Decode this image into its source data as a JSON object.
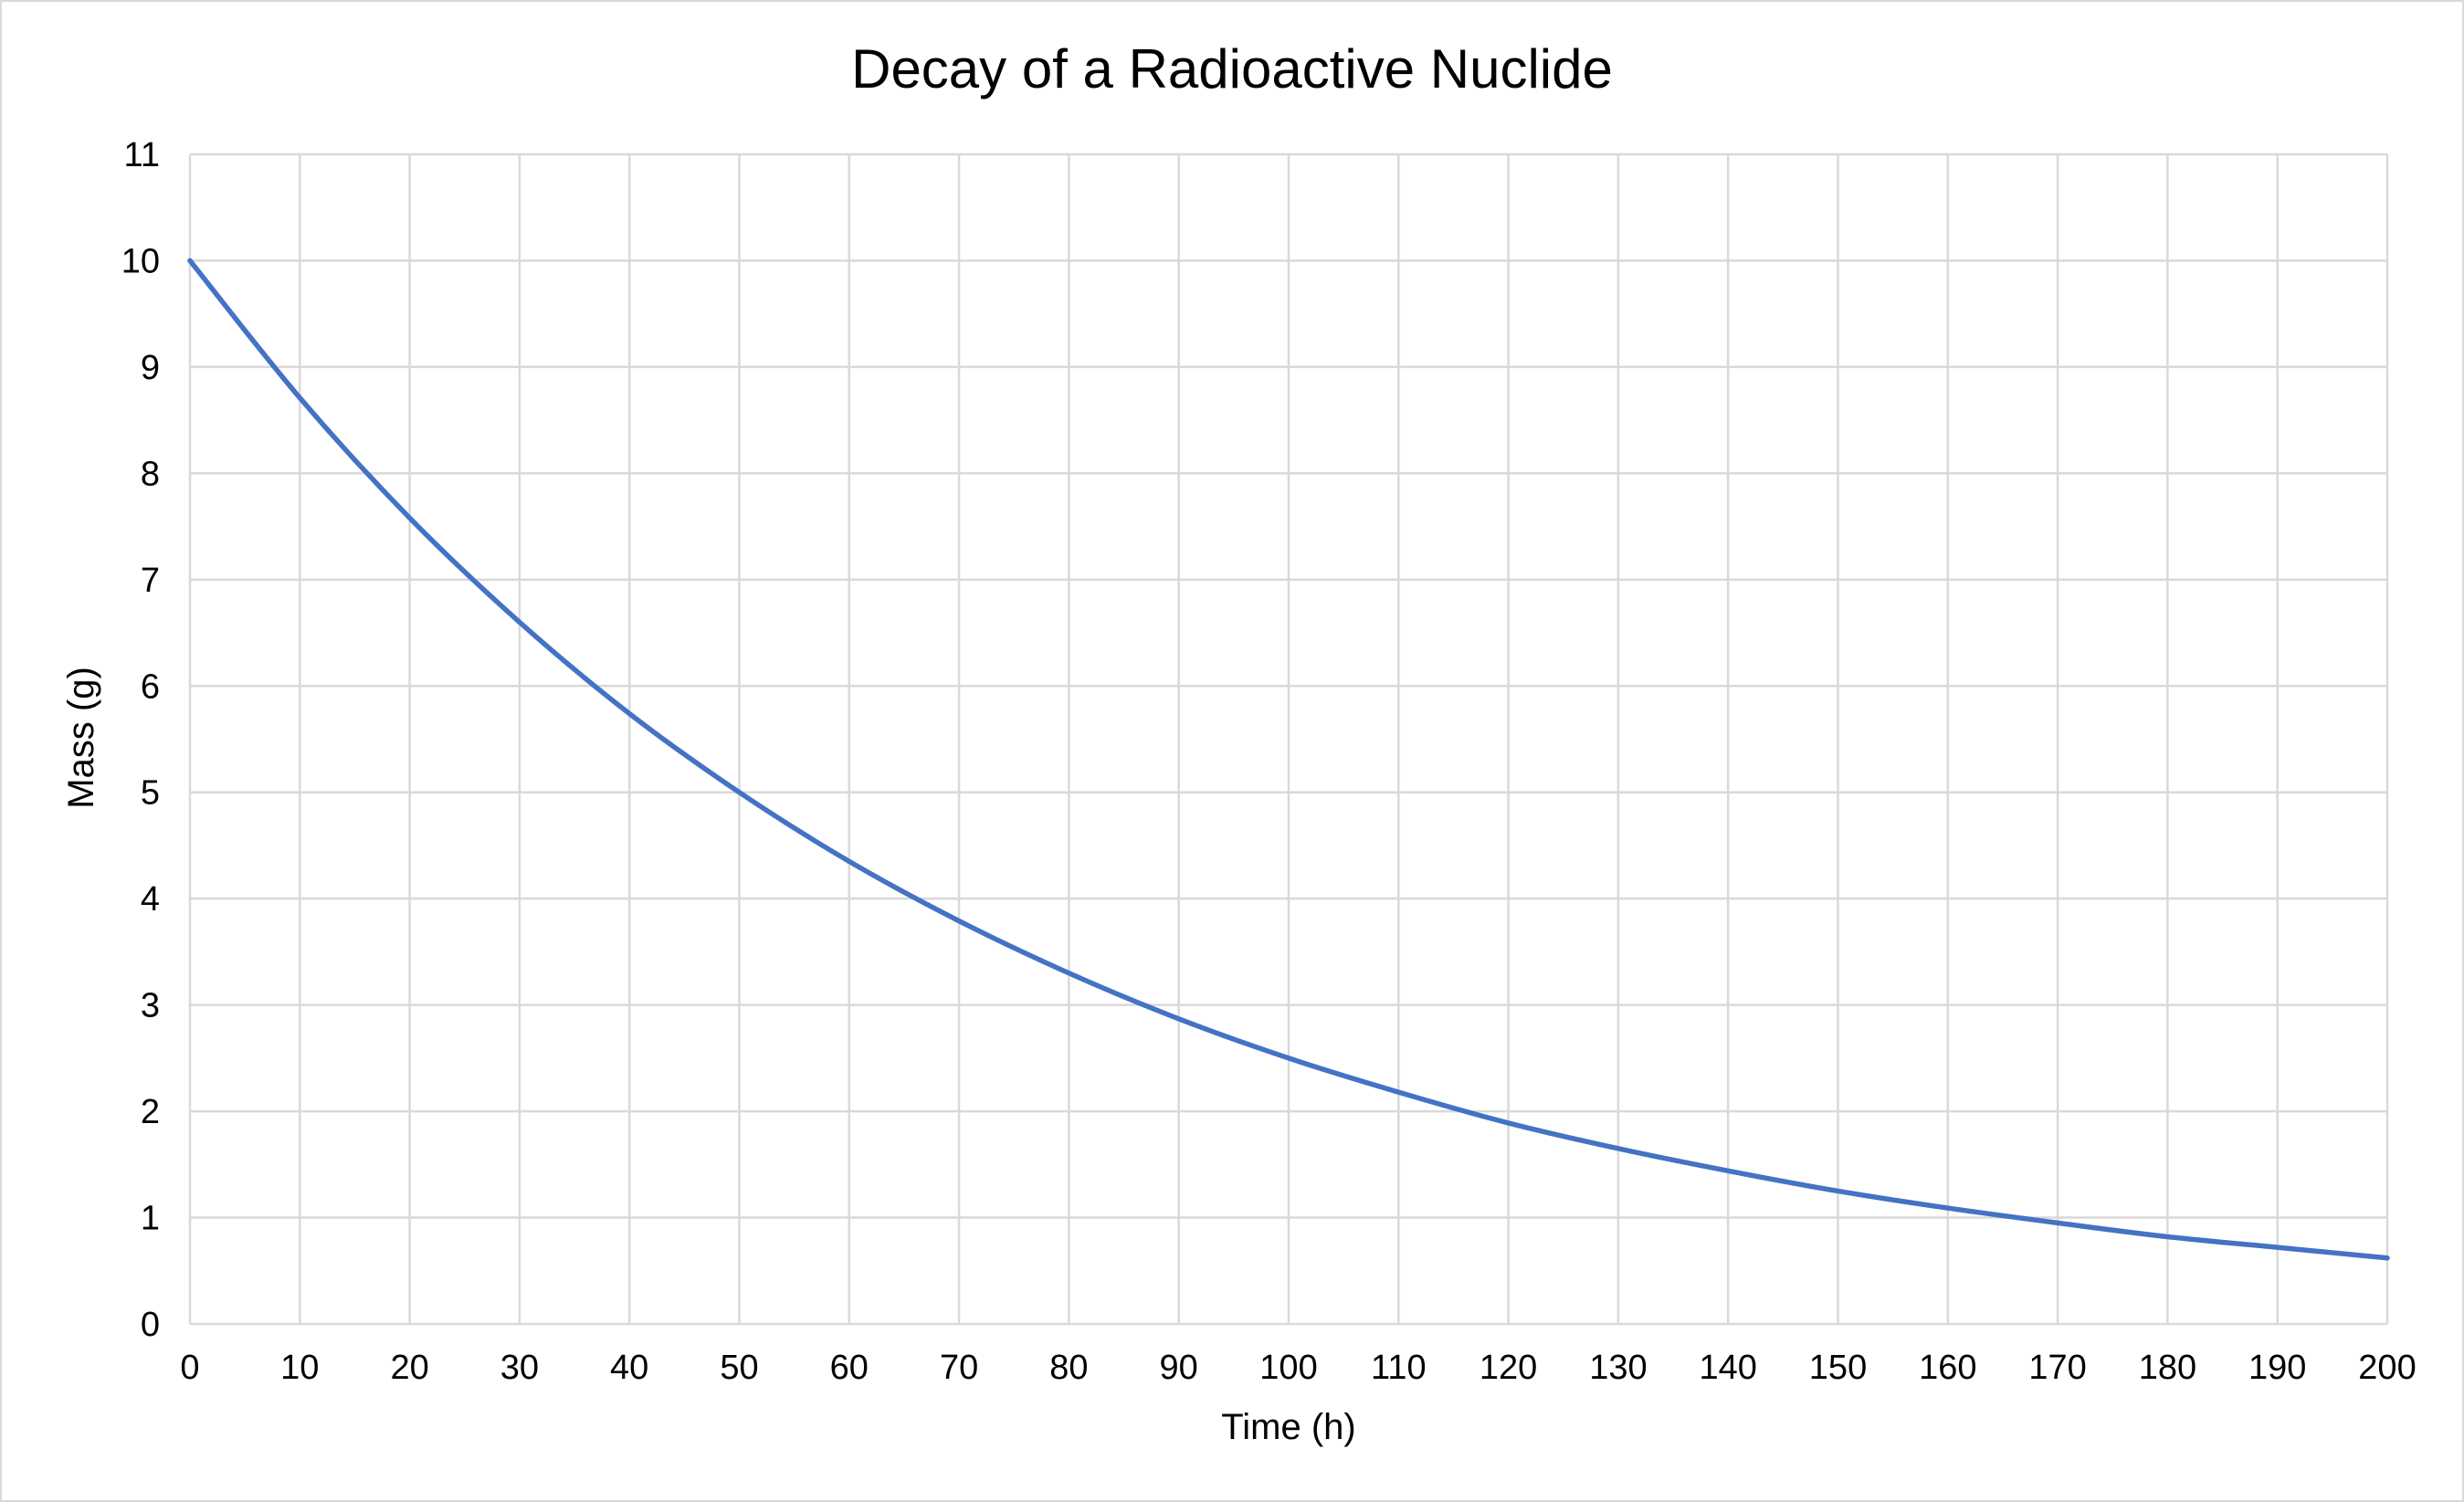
{
  "chart_data": {
    "type": "line",
    "title": "Decay of a Radioactive Nuclide",
    "xlabel": "Time (h)",
    "ylabel": "Mass (g)",
    "xlim": [
      0,
      200
    ],
    "ylim": [
      0,
      11
    ],
    "x_ticks": [
      0,
      10,
      20,
      30,
      40,
      50,
      60,
      70,
      80,
      90,
      100,
      110,
      120,
      130,
      140,
      150,
      160,
      170,
      180,
      190,
      200
    ],
    "y_ticks": [
      0,
      1,
      2,
      3,
      4,
      5,
      6,
      7,
      8,
      9,
      10,
      11
    ],
    "grid": true,
    "legend": "none",
    "series_color": "#4472c4",
    "series": [
      {
        "x": [
          0,
          10,
          20,
          30,
          40,
          50,
          60,
          70,
          80,
          90,
          100,
          110,
          120,
          130,
          140,
          150,
          160,
          170,
          180,
          190,
          200
        ],
        "values": [
          10,
          8.71,
          7.58,
          6.6,
          5.74,
          5.0,
          4.35,
          3.79,
          3.3,
          2.87,
          2.5,
          2.18,
          1.89,
          1.65,
          1.44,
          1.25,
          1.09,
          0.95,
          0.82,
          0.72,
          0.62
        ]
      }
    ]
  }
}
